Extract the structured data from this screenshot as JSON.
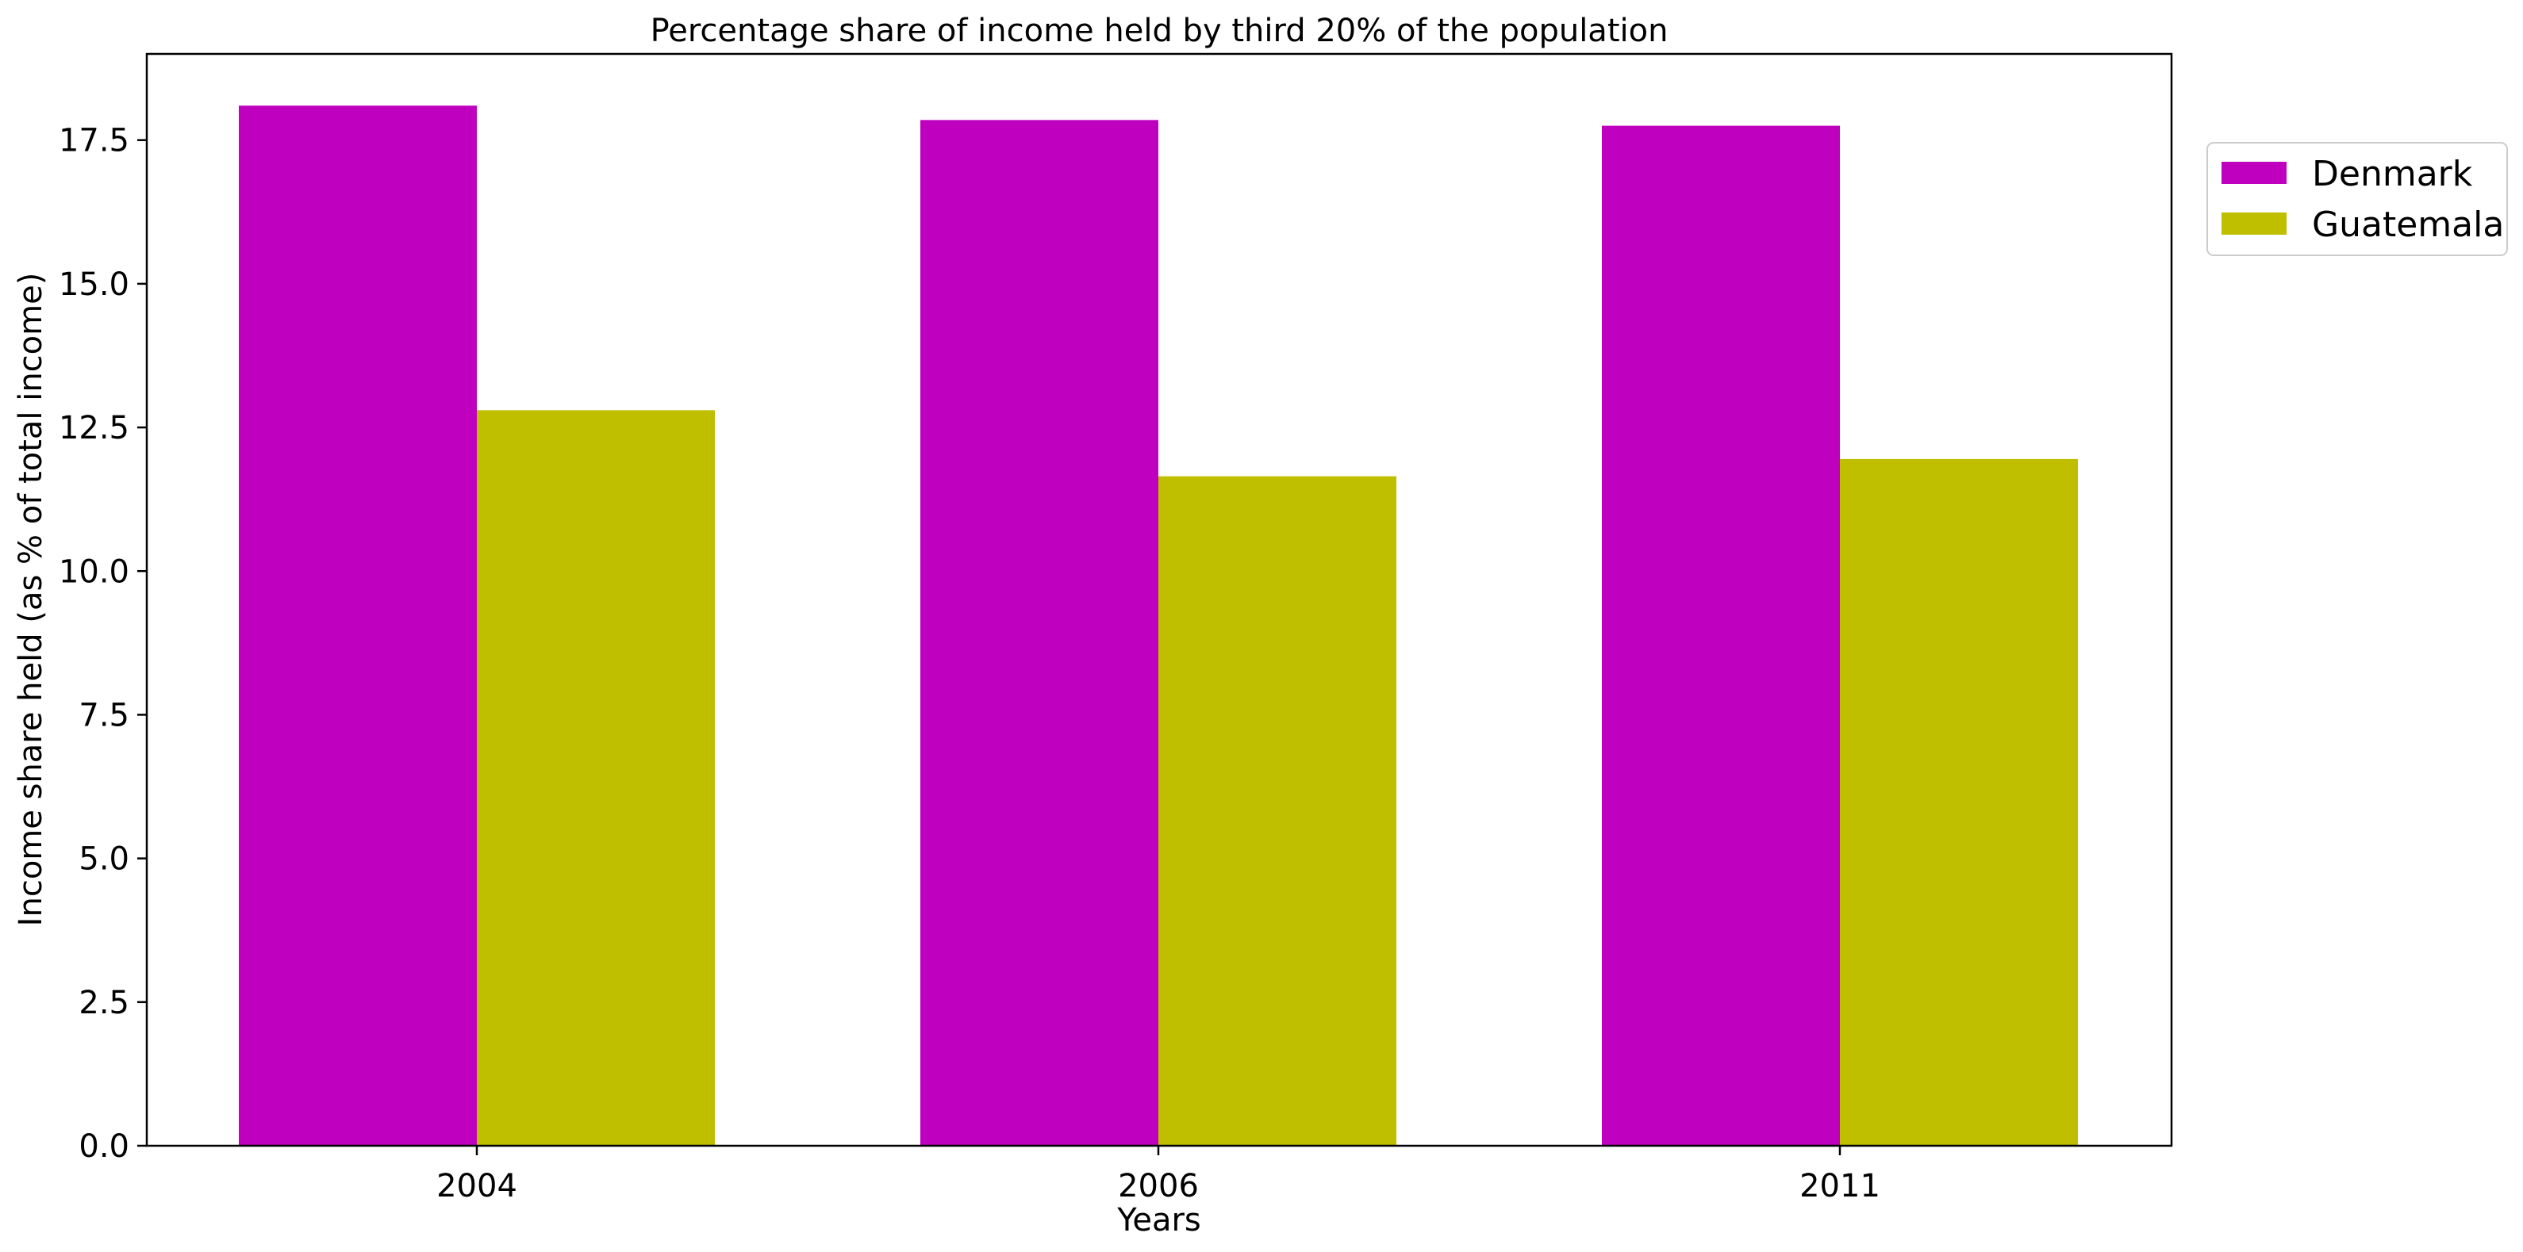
{
  "chart_data": {
    "type": "bar",
    "title": "Percentage share of income held by third 20% of the population",
    "xlabel": "Years",
    "ylabel": "Income share held (as % of total income)",
    "categories": [
      "2004",
      "2006",
      "2011"
    ],
    "series": [
      {
        "name": "Denmark",
        "values": [
          18.1,
          17.85,
          17.75
        ],
        "color": "#bf00bf"
      },
      {
        "name": "Guatemala",
        "values": [
          12.8,
          11.65,
          11.95
        ],
        "color": "#bfbf00"
      }
    ],
    "ylim": [
      0,
      19
    ],
    "yticks": [
      "0.0",
      "2.5",
      "5.0",
      "7.5",
      "10.0",
      "12.5",
      "15.0",
      "17.5"
    ],
    "grid": false,
    "legend_position": "upper-right-outside"
  }
}
